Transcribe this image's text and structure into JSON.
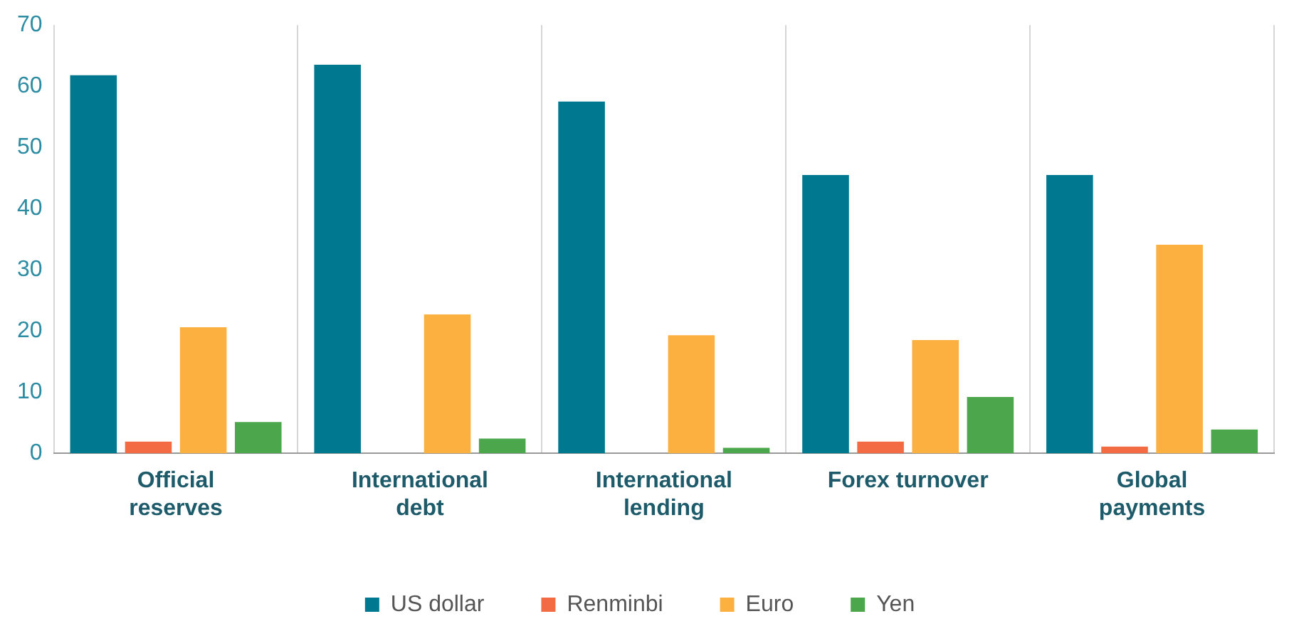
{
  "chart_data": {
    "type": "bar",
    "categories": [
      "Official reserves",
      "International debt",
      "International lending",
      "Forex turnover",
      "Global payments"
    ],
    "series": [
      {
        "name": "US dollar",
        "color": "#00788f",
        "values": [
          61.8,
          63.5,
          57.5,
          45.5,
          45.5
        ]
      },
      {
        "name": "Renminbi",
        "color": "#f26b43",
        "values": [
          1.9,
          0,
          0,
          1.9,
          1.1
        ]
      },
      {
        "name": "Euro",
        "color": "#fbb040",
        "values": [
          20.6,
          22.7,
          19.3,
          18.5,
          34.1
        ]
      },
      {
        "name": "Yen",
        "color": "#4ca64c",
        "values": [
          5.1,
          2.4,
          0.9,
          9.2,
          3.9
        ]
      }
    ],
    "ylim": [
      0,
      70
    ],
    "yticks": [
      0,
      10,
      20,
      30,
      40,
      50,
      60,
      70
    ],
    "grid": "x",
    "legend": "bottom"
  }
}
